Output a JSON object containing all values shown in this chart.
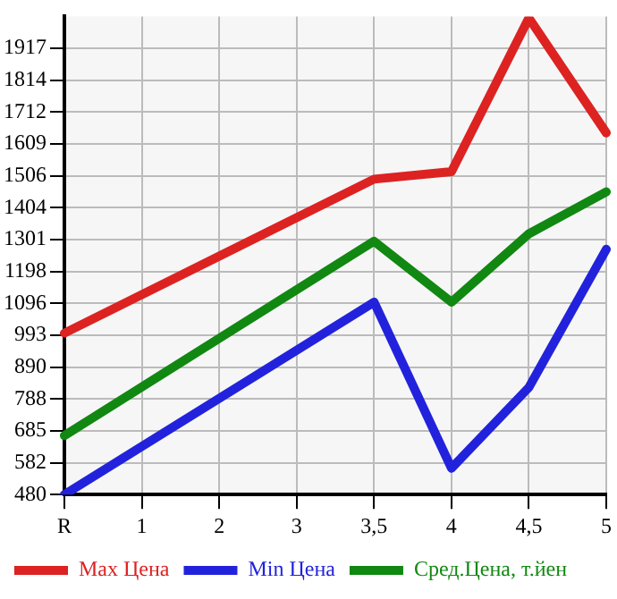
{
  "chart_data": {
    "type": "line",
    "categories": [
      "R",
      "1",
      "2",
      "3",
      "3,5",
      "4",
      "4,5",
      "5"
    ],
    "series": [
      {
        "name": "Max Цена",
        "color": "#dd2222",
        "values": [
          1000,
          null,
          null,
          null,
          1496,
          1520,
          2015,
          1645
        ]
      },
      {
        "name": "Min Цена",
        "color": "#2222dd",
        "values": [
          480,
          null,
          null,
          null,
          1100,
          565,
          825,
          1270
        ]
      },
      {
        "name": "Сред.Цена, т.йен",
        "color": "#118811",
        "values": [
          670,
          null,
          null,
          null,
          1296,
          1100,
          1320,
          1455
        ]
      }
    ],
    "ylim": [
      480,
      2020
    ],
    "yticks": [
      480,
      582,
      685,
      788,
      890,
      993,
      1096,
      1198,
      1301,
      1404,
      1506,
      1609,
      1712,
      1814,
      1917
    ],
    "grid": true,
    "legend": "bottom",
    "marker": "none",
    "line_style": "solid"
  }
}
